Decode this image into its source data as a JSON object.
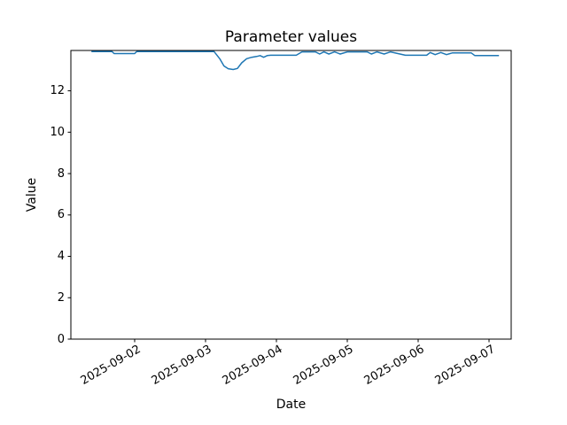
{
  "figure": {
    "background": "#ffffff",
    "spine_color": "#000000",
    "text_color": "#000000"
  },
  "chart_data": {
    "type": "line",
    "title": "Parameter values",
    "xlabel": "Date",
    "ylabel": "Value",
    "grid": false,
    "legend": null,
    "x_unit": "days since 2025-09-01 00:00",
    "xlim_days": [
      0.1,
      6.3125
    ],
    "ylim": [
      0,
      13.95
    ],
    "yticks": [
      0,
      2,
      4,
      6,
      8,
      10,
      12
    ],
    "xticks": [
      {
        "day": 1,
        "label": "2025-09-02"
      },
      {
        "day": 2,
        "label": "2025-09-03"
      },
      {
        "day": 3,
        "label": "2025-09-04"
      },
      {
        "day": 4,
        "label": "2025-09-05"
      },
      {
        "day": 5,
        "label": "2025-09-06"
      },
      {
        "day": 6,
        "label": "2025-09-07"
      }
    ],
    "series": [
      {
        "name": "parameter-values",
        "color": "#1f77b4",
        "line_width": 1.5,
        "points": [
          [
            0.39,
            13.9
          ],
          [
            0.68,
            13.9
          ],
          [
            0.71,
            13.8
          ],
          [
            1.0,
            13.8
          ],
          [
            1.03,
            13.9
          ],
          [
            2.12,
            13.9
          ],
          [
            2.2,
            13.55
          ],
          [
            2.26,
            13.2
          ],
          [
            2.32,
            13.07
          ],
          [
            2.39,
            13.03
          ],
          [
            2.45,
            13.08
          ],
          [
            2.51,
            13.35
          ],
          [
            2.58,
            13.55
          ],
          [
            2.65,
            13.62
          ],
          [
            2.72,
            13.66
          ],
          [
            2.77,
            13.7
          ],
          [
            2.82,
            13.62
          ],
          [
            2.87,
            13.7
          ],
          [
            2.92,
            13.72
          ],
          [
            3.28,
            13.72
          ],
          [
            3.36,
            13.88
          ],
          [
            3.55,
            13.88
          ],
          [
            3.61,
            13.78
          ],
          [
            3.67,
            13.88
          ],
          [
            3.74,
            13.78
          ],
          [
            3.82,
            13.88
          ],
          [
            3.9,
            13.78
          ],
          [
            4.0,
            13.88
          ],
          [
            4.28,
            13.88
          ],
          [
            4.34,
            13.78
          ],
          [
            4.42,
            13.88
          ],
          [
            4.52,
            13.78
          ],
          [
            4.61,
            13.88
          ],
          [
            4.82,
            13.72
          ],
          [
            5.12,
            13.72
          ],
          [
            5.17,
            13.85
          ],
          [
            5.24,
            13.75
          ],
          [
            5.32,
            13.85
          ],
          [
            5.4,
            13.75
          ],
          [
            5.48,
            13.83
          ],
          [
            5.75,
            13.83
          ],
          [
            5.8,
            13.7
          ],
          [
            6.14,
            13.7
          ]
        ]
      }
    ]
  }
}
